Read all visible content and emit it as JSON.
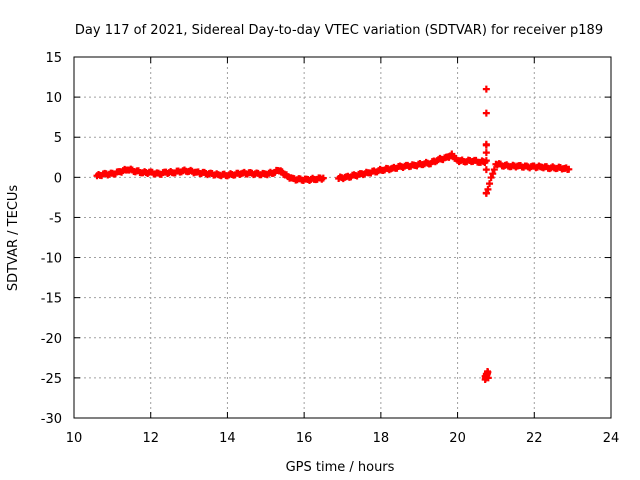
{
  "chart_data": {
    "type": "scatter",
    "title": "Day 117 of 2021, Sidereal Day-to-day VTEC variation (SDTVAR) for receiver p189",
    "xlabel": "GPS time / hours",
    "ylabel": "SDTVAR / TECUs",
    "xlim": [
      10,
      24
    ],
    "ylim": [
      -30,
      15
    ],
    "xticks": [
      10,
      12,
      14,
      16,
      18,
      20,
      22,
      24
    ],
    "yticks": [
      15,
      10,
      5,
      0,
      -5,
      -10,
      -15,
      -20,
      -25,
      -30
    ],
    "grid": true,
    "legend": "none",
    "series": [
      {
        "name": "SDTVAR",
        "color": "#ff0000",
        "marker": "plus",
        "points": [
          [
            10.6,
            0.2
          ],
          [
            10.8,
            0.4
          ],
          [
            11.0,
            0.4
          ],
          [
            11.2,
            0.7
          ],
          [
            11.4,
            1.0
          ],
          [
            11.6,
            0.8
          ],
          [
            11.8,
            0.6
          ],
          [
            12.0,
            0.6
          ],
          [
            12.2,
            0.4
          ],
          [
            12.4,
            0.6
          ],
          [
            12.6,
            0.6
          ],
          [
            12.8,
            0.8
          ],
          [
            13.0,
            0.8
          ],
          [
            13.2,
            0.6
          ],
          [
            13.4,
            0.5
          ],
          [
            13.6,
            0.4
          ],
          [
            13.8,
            0.3
          ],
          [
            14.0,
            0.3
          ],
          [
            14.2,
            0.4
          ],
          [
            14.4,
            0.5
          ],
          [
            14.6,
            0.5
          ],
          [
            14.8,
            0.4
          ],
          [
            15.0,
            0.4
          ],
          [
            15.2,
            0.6
          ],
          [
            15.35,
            0.9
          ],
          [
            15.5,
            0.3
          ],
          [
            15.7,
            -0.2
          ],
          [
            15.9,
            -0.3
          ],
          [
            16.1,
            -0.3
          ],
          [
            16.3,
            -0.2
          ],
          [
            16.5,
            -0.1
          ],
          [
            16.9,
            -0.1
          ],
          [
            17.1,
            0.0
          ],
          [
            17.3,
            0.2
          ],
          [
            17.5,
            0.4
          ],
          [
            17.7,
            0.6
          ],
          [
            17.9,
            0.8
          ],
          [
            18.1,
            1.0
          ],
          [
            18.3,
            1.1
          ],
          [
            18.5,
            1.3
          ],
          [
            18.7,
            1.4
          ],
          [
            18.9,
            1.5
          ],
          [
            19.1,
            1.7
          ],
          [
            19.3,
            1.8
          ],
          [
            19.5,
            2.2
          ],
          [
            19.7,
            2.4
          ],
          [
            19.85,
            2.8
          ],
          [
            20.0,
            2.1
          ],
          [
            20.2,
            2.0
          ],
          [
            20.4,
            2.1
          ],
          [
            20.6,
            1.9
          ],
          [
            20.75,
            2.0
          ],
          [
            21.0,
            1.7
          ],
          [
            21.2,
            1.5
          ],
          [
            21.4,
            1.4
          ],
          [
            21.6,
            1.4
          ],
          [
            21.8,
            1.3
          ],
          [
            22.0,
            1.3
          ],
          [
            22.2,
            1.3
          ],
          [
            22.4,
            1.2
          ],
          [
            22.6,
            1.2
          ],
          [
            22.8,
            1.1
          ],
          [
            22.9,
            1.0
          ],
          [
            20.75,
            11.0
          ],
          [
            20.75,
            8.0
          ],
          [
            20.75,
            4.0
          ],
          [
            20.75,
            -2.0
          ],
          [
            20.72,
            -24.8
          ],
          [
            20.75,
            -24.5
          ],
          [
            20.78,
            -24.2
          ],
          [
            20.8,
            -25.0
          ]
        ]
      }
    ]
  }
}
